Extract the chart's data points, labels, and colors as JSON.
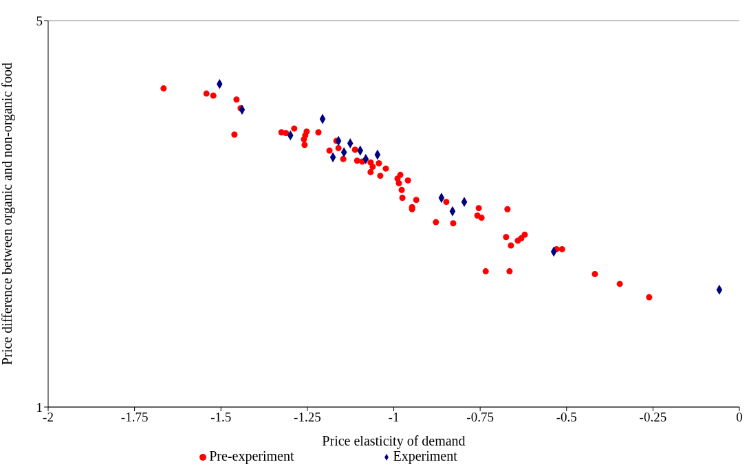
{
  "chart_data": {
    "type": "scatter",
    "xlabel": "Price elasticity of demand",
    "ylabel": "Price difference between organic and non-organic food",
    "xlim": [
      -2,
      0
    ],
    "xticks": [
      -2,
      -1.75,
      -1.5,
      -1.25,
      -1,
      -0.75,
      -0.5,
      -0.25,
      0
    ],
    "ylim": [
      1,
      5
    ],
    "yticks": [
      1,
      5
    ],
    "log": "y",
    "grid": "y",
    "legend": "bottom",
    "series": [
      {
        "name": "Pre-experiment",
        "color": "#ff0000",
        "marker": "circle",
        "x": [
          -1.666,
          -1.542,
          -1.522,
          -1.455,
          -1.443,
          -1.461,
          -1.325,
          -1.312,
          -1.288,
          -1.252,
          -1.26,
          -1.258,
          -1.256,
          -1.218,
          -1.186,
          -1.166,
          -1.16,
          -1.146,
          -1.112,
          -1.106,
          -1.091,
          -1.067,
          -1.061,
          -1.067,
          -1.043,
          -1.039,
          -1.023,
          -0.981,
          -0.989,
          -0.985,
          -0.977,
          -0.975,
          -0.959,
          -0.935,
          -0.947,
          -0.947,
          -0.878,
          -0.848,
          -0.828,
          -0.754,
          -0.758,
          -0.746,
          -0.671,
          -0.675,
          -0.661,
          -0.641,
          -0.631,
          -0.621,
          -0.734,
          -0.665,
          -0.529,
          -0.513,
          -0.418,
          -0.346,
          -0.261
        ],
        "values": [
          3.77,
          3.69,
          3.66,
          3.6,
          3.47,
          3.11,
          3.14,
          3.13,
          3.19,
          3.15,
          3.05,
          2.98,
          3.1,
          3.14,
          2.91,
          3.03,
          2.94,
          2.81,
          2.92,
          2.79,
          2.78,
          2.77,
          2.72,
          2.66,
          2.76,
          2.62,
          2.7,
          2.63,
          2.59,
          2.54,
          2.47,
          2.39,
          2.57,
          2.37,
          2.3,
          2.28,
          2.16,
          2.35,
          2.15,
          2.29,
          2.22,
          2.2,
          2.28,
          2.03,
          1.96,
          2.0,
          2.02,
          2.05,
          1.76,
          1.76,
          1.93,
          1.93,
          1.74,
          1.67,
          1.58
        ]
      },
      {
        "name": "Experiment",
        "color": "#000080",
        "marker": "diamond",
        "x": [
          -1.504,
          -1.439,
          -1.299,
          -1.206,
          -1.176,
          -1.16,
          -1.144,
          -1.126,
          -1.097,
          -1.081,
          -1.047,
          -0.862,
          -0.83,
          -0.796,
          -0.537,
          -0.058
        ],
        "values": [
          3.84,
          3.45,
          3.1,
          3.32,
          2.83,
          3.03,
          2.89,
          3.0,
          2.91,
          2.81,
          2.86,
          2.39,
          2.26,
          2.35,
          1.91,
          1.63
        ]
      }
    ]
  }
}
